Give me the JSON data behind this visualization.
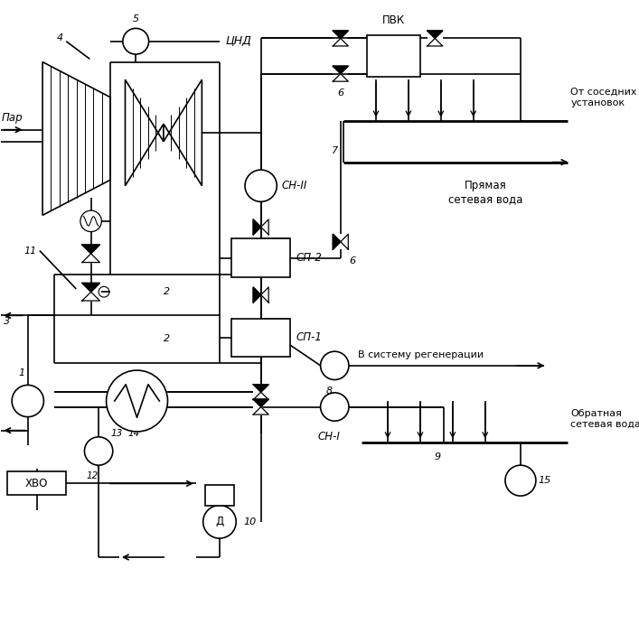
{
  "bg": "#ffffff",
  "lc": "#000000",
  "lw": 1.2,
  "fw": 7.07,
  "fh": 6.91,
  "texts": {
    "par": "Пар",
    "cnd": "ЦНД",
    "pvk": "ПВК",
    "cn2": "СН-II",
    "cn1": "СН-I",
    "sp2": "СП-2",
    "sp1": "СП-1",
    "xvo": "ХВО",
    "d": "Д",
    "reg": "В систему регенерации",
    "pryam": "Прямая\nсетевая вода",
    "obr": "Обратная\nсетевая вода",
    "sosed": "От соседних\nустановок"
  }
}
